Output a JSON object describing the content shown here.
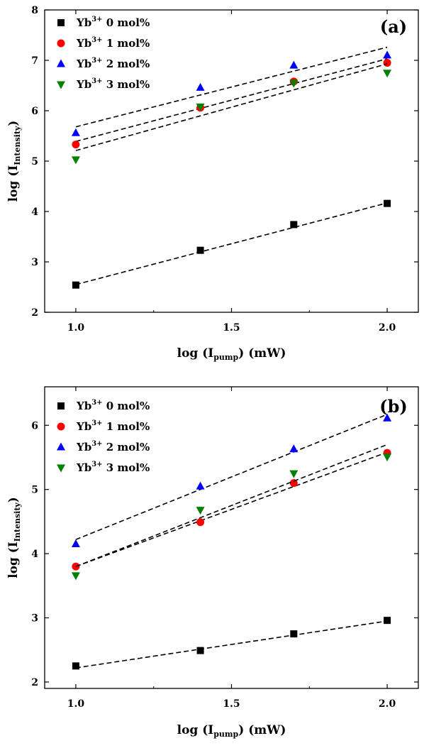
{
  "chart_data": [
    {
      "type": "scatter",
      "panel_label": "(a)",
      "xlabel": {
        "prefix": "log (I",
        "sub": "pump",
        "suffix": ") (mW)"
      },
      "ylabel": {
        "prefix": "log (I",
        "sub": "Intensity",
        "suffix": ")"
      },
      "xlim": [
        0.9,
        2.1
      ],
      "ylim": [
        2,
        8
      ],
      "xticks": [
        "1.0",
        "1.5",
        "2.0"
      ],
      "yticks": [
        "2",
        "3",
        "4",
        "5",
        "6",
        "7",
        "8"
      ],
      "legend_position": "top-left",
      "fit_lines": "dashed linear fits",
      "series": [
        {
          "name": {
            "base": "Yb",
            "sup": "3+",
            "rest": " 0 mol%"
          },
          "marker": "square",
          "color": "#000000",
          "x": [
            1.0,
            1.4,
            1.7,
            2.0
          ],
          "y": [
            2.54,
            3.23,
            3.74,
            4.16
          ],
          "fit": [
            2.55,
            4.17
          ]
        },
        {
          "name": {
            "base": "Yb",
            "sup": "3+",
            "rest": " 1 mol%"
          },
          "marker": "circle",
          "color": "#ff0000",
          "x": [
            1.0,
            1.4,
            1.7,
            2.0
          ],
          "y": [
            5.33,
            6.06,
            6.58,
            6.95
          ],
          "fit": [
            5.39,
            7.03
          ]
        },
        {
          "name": {
            "base": "Yb",
            "sup": "3+",
            "rest": " 2 mol%"
          },
          "marker": "triangle-up",
          "color": "#0000ff",
          "x": [
            1.0,
            1.4,
            1.7,
            2.0
          ],
          "y": [
            5.56,
            6.46,
            6.9,
            7.1
          ],
          "fit": [
            5.68,
            7.26
          ]
        },
        {
          "name": {
            "base": "Yb",
            "sup": "3+",
            "rest": " 3 mol%"
          },
          "marker": "triangle-down",
          "color": "#008000",
          "x": [
            1.0,
            1.4,
            1.7,
            2.0
          ],
          "y": [
            5.03,
            6.08,
            6.55,
            6.75
          ],
          "fit": [
            5.21,
            6.93
          ]
        }
      ]
    },
    {
      "type": "scatter",
      "panel_label": "(b)",
      "xlabel": {
        "prefix": "log (I",
        "sub": "pump",
        "suffix": ") (mW)"
      },
      "ylabel": {
        "prefix": "log (I",
        "sub": "Intensity",
        "suffix": ")"
      },
      "xlim": [
        0.9,
        2.1
      ],
      "ylim": [
        1.9,
        6.6
      ],
      "xticks": [
        "1.0",
        "1.5",
        "2.0"
      ],
      "yticks": [
        "2",
        "3",
        "4",
        "5",
        "6"
      ],
      "legend_position": "top-left",
      "fit_lines": "dashed linear fits",
      "series": [
        {
          "name": {
            "base": "Yb",
            "sup": "3+",
            "rest": " 0 mol%"
          },
          "marker": "square",
          "color": "#000000",
          "x": [
            1.0,
            1.4,
            1.7,
            2.0
          ],
          "y": [
            2.25,
            2.49,
            2.75,
            2.96
          ],
          "fit": [
            2.22,
            2.95
          ]
        },
        {
          "name": {
            "base": "Yb",
            "sup": "3+",
            "rest": " 1 mol%"
          },
          "marker": "circle",
          "color": "#ff0000",
          "x": [
            1.0,
            1.4,
            1.7,
            2.0
          ],
          "y": [
            3.8,
            4.49,
            5.1,
            5.57
          ],
          "fit": [
            3.8,
            5.58
          ]
        },
        {
          "name": {
            "base": "Yb",
            "sup": "3+",
            "rest": " 2 mol%"
          },
          "marker": "triangle-up",
          "color": "#0000ff",
          "x": [
            1.0,
            1.4,
            1.7,
            2.0
          ],
          "y": [
            4.15,
            5.05,
            5.63,
            6.11
          ],
          "fit": [
            4.22,
            6.17
          ]
        },
        {
          "name": {
            "base": "Yb",
            "sup": "3+",
            "rest": " 3 mol%"
          },
          "marker": "triangle-down",
          "color": "#008000",
          "x": [
            1.0,
            1.4,
            1.7,
            2.0
          ],
          "y": [
            3.66,
            4.68,
            5.25,
            5.51
          ],
          "fit": [
            3.8,
            5.7
          ]
        }
      ]
    }
  ]
}
